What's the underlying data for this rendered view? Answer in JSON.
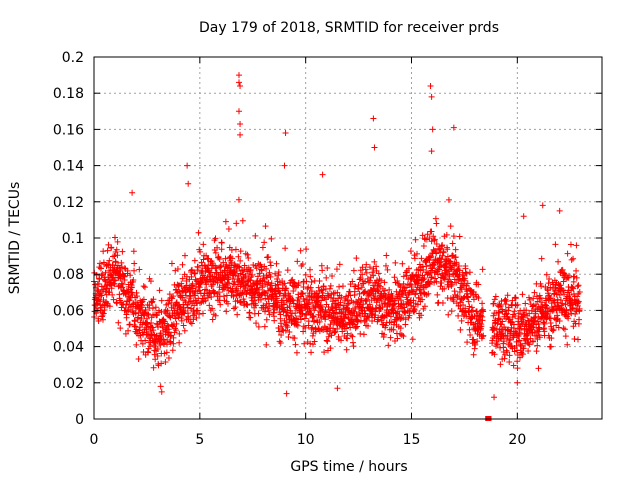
{
  "chart_data": {
    "type": "scatter",
    "title": "Day 179 of 2018, SRMTID for receiver prds",
    "xlabel": "GPS time / hours",
    "ylabel": "SRMTID / TECUs",
    "xlim": [
      0,
      24
    ],
    "ylim": [
      0,
      0.2
    ],
    "xticks": [
      0,
      5,
      10,
      15,
      20
    ],
    "yticks": [
      0,
      0.02,
      0.04,
      0.06,
      0.08,
      0.1,
      0.12,
      0.14,
      0.16,
      0.18,
      0.2
    ],
    "xtick_labels": [
      "0",
      "5",
      "10",
      "15",
      "20"
    ],
    "ytick_labels": [
      "0",
      "0.02",
      "0.04",
      "0.06",
      "0.08",
      "0.1",
      "0.12",
      "0.14",
      "0.16",
      "0.18",
      "0.2"
    ],
    "grid": true,
    "marker": "+",
    "color": "#ff0000",
    "sample_interval_hours": 0.00833,
    "trend": {
      "x": [
        0,
        1,
        2,
        3,
        4,
        5,
        6,
        7,
        8,
        9,
        10,
        11,
        12,
        13,
        14,
        15,
        16,
        17,
        18,
        19,
        20,
        21,
        22,
        23
      ],
      "y": [
        0.065,
        0.08,
        0.06,
        0.045,
        0.06,
        0.075,
        0.08,
        0.075,
        0.07,
        0.065,
        0.06,
        0.06,
        0.055,
        0.07,
        0.06,
        0.07,
        0.085,
        0.08,
        0.055,
        0.05,
        0.05,
        0.055,
        0.07,
        0.06
      ]
    },
    "outliers": [
      {
        "x": 6.85,
        "y": 0.19
      },
      {
        "x": 6.85,
        "y": 0.186
      },
      {
        "x": 6.9,
        "y": 0.184
      },
      {
        "x": 6.85,
        "y": 0.17
      },
      {
        "x": 6.9,
        "y": 0.163
      },
      {
        "x": 6.9,
        "y": 0.157
      },
      {
        "x": 15.9,
        "y": 0.184
      },
      {
        "x": 15.95,
        "y": 0.178
      },
      {
        "x": 16.0,
        "y": 0.16
      },
      {
        "x": 15.95,
        "y": 0.148
      },
      {
        "x": 17.0,
        "y": 0.161
      },
      {
        "x": 13.2,
        "y": 0.166
      },
      {
        "x": 13.25,
        "y": 0.15
      },
      {
        "x": 9.05,
        "y": 0.158
      },
      {
        "x": 9.0,
        "y": 0.14
      },
      {
        "x": 4.4,
        "y": 0.14
      },
      {
        "x": 4.45,
        "y": 0.13
      },
      {
        "x": 10.8,
        "y": 0.135
      },
      {
        "x": 1.8,
        "y": 0.125
      },
      {
        "x": 3.2,
        "y": 0.015
      },
      {
        "x": 3.15,
        "y": 0.018
      },
      {
        "x": 9.1,
        "y": 0.014
      },
      {
        "x": 11.5,
        "y": 0.017
      },
      {
        "x": 18.9,
        "y": 0.012
      },
      {
        "x": 20.0,
        "y": 0.02
      },
      {
        "x": 21.0,
        "y": 0.028
      },
      {
        "x": 22.0,
        "y": 0.115
      },
      {
        "x": 21.2,
        "y": 0.118
      },
      {
        "x": 20.3,
        "y": 0.112
      }
    ],
    "zero_values": [
      {
        "x": 18.6,
        "y": 0
      },
      {
        "x": 18.62,
        "y": 0
      },
      {
        "x": 18.64,
        "y": 0
      },
      {
        "x": 18.66,
        "y": 0
      }
    ]
  }
}
